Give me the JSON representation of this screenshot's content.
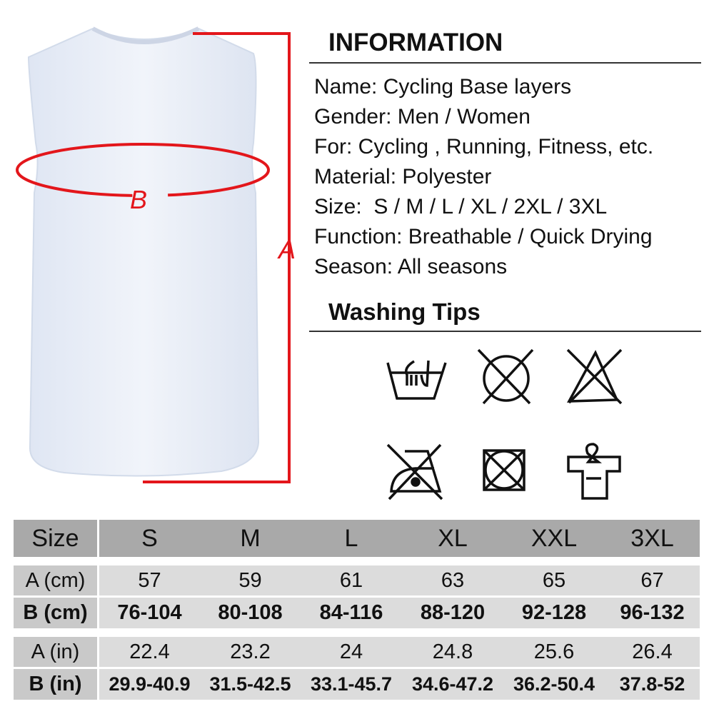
{
  "info": {
    "title": "INFORMATION",
    "lines": [
      "Name: Cycling Base layers",
      "Gender: Men / Women",
      "For: Cycling , Running, Fitness, etc.",
      "Material: Polyester",
      "Size:  S / M / L / XL / 2XL / 3XL",
      "Function: Breathable / Quick Drying",
      "Season: All seasons"
    ]
  },
  "washing": {
    "title": "Washing Tips",
    "icons": [
      "hand-wash-icon",
      "do-not-tumble-dry-icon",
      "do-not-bleach-icon",
      "do-not-iron-icon",
      "do-not-dry-clean-icon",
      "hang-dry-icon"
    ]
  },
  "diagram": {
    "label_a": "A",
    "label_b": "B",
    "marker_color": "#e3161b"
  },
  "table": {
    "header": [
      "Size",
      "S",
      "M",
      "L",
      "XL",
      "XXL",
      "3XL"
    ],
    "rows": [
      [
        "A (cm)",
        "57",
        "59",
        "61",
        "63",
        "65",
        "67"
      ],
      [
        "B (cm)",
        "76-104",
        "80-108",
        "84-116",
        "88-120",
        "92-128",
        "96-132"
      ],
      [
        "A (in)",
        "22.4",
        "23.2",
        "24",
        "24.8",
        "25.6",
        "26.4"
      ],
      [
        "B (in)",
        "29.9-40.9",
        "31.5-42.5",
        "33.1-45.7",
        "34.6-47.2",
        "36.2-50.4",
        "37.8-52"
      ]
    ]
  }
}
